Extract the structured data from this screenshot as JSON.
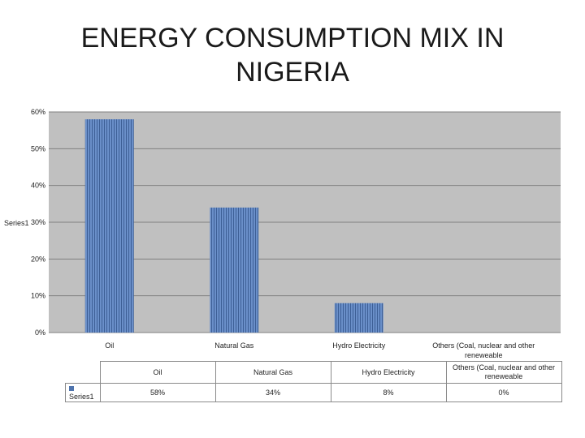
{
  "chart_data": {
    "type": "bar",
    "title": "ENERGY CONSUMPTION MIX IN NIGERIA",
    "categories": [
      "Oil",
      "Natural Gas",
      "Hydro Electricity",
      "Others (Coal, nuclear and other renewable"
    ],
    "categories_wrapped": [
      [
        "Oil"
      ],
      [
        "Natural Gas"
      ],
      [
        "Hydro Electricity"
      ],
      [
        "Others (Coal, nuclear and other",
        "reneweable"
      ]
    ],
    "series": [
      {
        "name": "Series1",
        "values": [
          0.58,
          0.34,
          0.08,
          0.0
        ],
        "labels": [
          "58%",
          "34%",
          "8%",
          "0%"
        ]
      }
    ],
    "ylabel": "Series1",
    "ylim": [
      0,
      0.6
    ],
    "yticks": [
      0,
      0.1,
      0.2,
      0.3,
      0.4,
      0.5,
      0.6
    ],
    "ytick_labels": [
      "0%",
      "10%",
      "20%",
      "30%",
      "40%",
      "50%",
      "60%"
    ],
    "grid": true,
    "colors": {
      "bar": "#4f74ad",
      "plot_bg": "#c0c0c0",
      "grid": "#808080"
    },
    "data_table": {
      "headers": [
        "Oil",
        "Natural Gas",
        "Hydro Electricity",
        "Others (Coal, nuclear and other reneweable"
      ],
      "series_label": "Series1",
      "values": [
        "58%",
        "34%",
        "8%",
        "0%"
      ]
    }
  }
}
